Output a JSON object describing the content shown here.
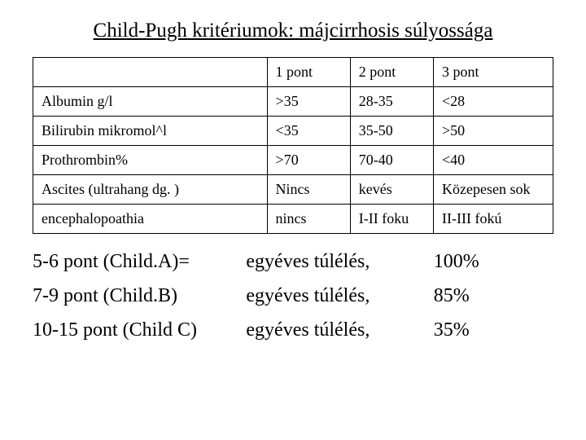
{
  "title": "Child-Pugh kritériumok: májcirrhosis súlyossága",
  "criteria_table": {
    "columns": [
      "",
      "1 pont",
      "2 pont",
      "3 pont"
    ],
    "col_widths_percent": [
      45,
      16,
      16,
      23
    ],
    "rows": [
      [
        "Albumin g/l",
        ">35",
        "28-35",
        "<28"
      ],
      [
        "Bilirubin mikromol^l",
        "<35",
        "35-50",
        ">50"
      ],
      [
        "Prothrombin%",
        ">70",
        "70-40",
        "<40"
      ],
      [
        "Ascites (ultrahang dg. )",
        "Nincs",
        "kevés",
        "Közepesen sok"
      ],
      [
        "encephalopoathia",
        "nincs",
        "I-II foku",
        "II-III fokú"
      ]
    ],
    "border_color": "#000000",
    "background_color": "#ffffff",
    "cell_fontsize": 18,
    "font_family": "Times New Roman"
  },
  "survival": {
    "rows": [
      {
        "label": "5-6 pont (Child.A)=",
        "text": "egyéves túlélés,",
        "rate": "100%"
      },
      {
        "label": "7-9 pont (Child.B)",
        "text": "egyéves túlélés,",
        "rate": "85%"
      },
      {
        "label": "10-15 pont (Child C)",
        "text": "egyéves túlélés,",
        "rate": "35%"
      }
    ],
    "fontsize": 24,
    "col_widths_percent": [
      41,
      36,
      23
    ]
  },
  "colors": {
    "text": "#000000",
    "background": "#ffffff"
  },
  "title_fontsize": 25
}
